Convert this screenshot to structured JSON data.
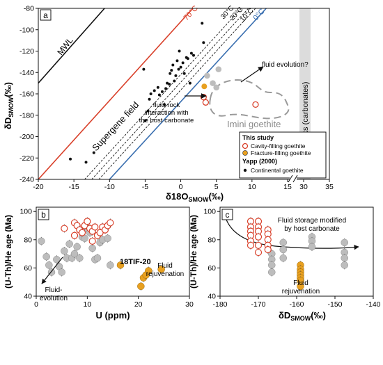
{
  "colors": {
    "red": "#d9402a",
    "blue": "#3a6fb0",
    "orange": "#e8a020",
    "gray": "#bdbdbd",
    "black": "#111111",
    "dashed_region": "#9a9a9a",
    "host_band": "#dcdcdc"
  },
  "chart_data": [
    {
      "panel": "a",
      "type": "scatter",
      "xlabel": "δ18O",
      "xlabel_sub": "SMOW",
      "xlabel_unit": "(‰)",
      "ylabel": "δD",
      "ylabel_sub": "SMOW",
      "ylabel_unit": "(‰)",
      "xticks_main": [
        "-20",
        "-15",
        "-10",
        "-5",
        "0",
        "5",
        "10",
        "15"
      ],
      "xticks_break": [
        "30",
        "35"
      ],
      "yticks": [
        "-80",
        "-100",
        "-120",
        "-140",
        "-160",
        "-180",
        "-200",
        "-220",
        "-240"
      ],
      "xlim_main": [
        -20,
        15
      ],
      "xlim_break": [
        29,
        35
      ],
      "ylim": [
        -240,
        -80
      ],
      "lines": [
        {
          "name": "MWL",
          "color": "#111111",
          "style": "solid",
          "points": [
            [
              -20,
              -150
            ],
            [
              -10.7,
              -80
            ]
          ]
        },
        {
          "name": "70°C",
          "color": "#d9402a",
          "style": "solid",
          "points": [
            [
              -20,
              -240
            ],
            [
              1.7,
              -80
            ]
          ]
        },
        {
          "name": "30°C",
          "color": "#111111",
          "style": "dashed",
          "points": [
            [
              -13.5,
              -240
            ],
            [
              8.5,
              -80
            ]
          ]
        },
        {
          "name": "20°C",
          "color": "#111111",
          "style": "dashed",
          "points": [
            [
              -12.5,
              -240
            ],
            [
              9.5,
              -80
            ]
          ]
        },
        {
          "name": "10°C",
          "color": "#111111",
          "style": "dashed",
          "points": [
            [
              -11.5,
              -240
            ],
            [
              10.5,
              -80
            ]
          ]
        },
        {
          "name": "0°C",
          "color": "#3a6fb0",
          "style": "solid",
          "points": [
            [
              -10,
              -240
            ],
            [
              12,
              -80
            ]
          ]
        }
      ],
      "annotations": {
        "mwl": "MWL",
        "t70": "70°C",
        "t30": "30°C",
        "t20": "20°C",
        "t10": "10°C",
        "t0": "0°C",
        "supergene": "Supergene field",
        "fluid_evolution": "fluid evolution?",
        "fluid_rock_1": "fluid-rock",
        "fluid_rock_2": "interaction with",
        "fluid_rock_3": "the host carbonate",
        "imini": "Imini goethite",
        "host_rocks": "Host-rocks (carbonates)",
        "panel_label": "a"
      },
      "legend": {
        "title": "This study",
        "item1": "Cavity-filling goethite",
        "item2": "Fracture-filling goethite",
        "ref_title": "Yapp (2000)",
        "item3": "Continental goethite",
        "placement": "bottom-right"
      },
      "continental_goethite": [
        [
          -15.5,
          -221
        ],
        [
          -13.3,
          -224
        ],
        [
          -12.2,
          -215
        ],
        [
          -5.2,
          -137
        ],
        [
          -5.0,
          -185
        ],
        [
          -4.6,
          -176
        ],
        [
          -4.4,
          -165
        ],
        [
          -4.2,
          -160
        ],
        [
          -3.7,
          -157
        ],
        [
          -3.2,
          -154
        ],
        [
          -3.0,
          -161
        ],
        [
          -2.6,
          -158
        ],
        [
          -2.3,
          -170
        ],
        [
          -2.1,
          -155
        ],
        [
          -1.9,
          -150
        ],
        [
          -1.6,
          -151
        ],
        [
          -1.5,
          -141
        ],
        [
          -1.3,
          -138
        ],
        [
          -1.1,
          -133
        ],
        [
          -0.9,
          -148
        ],
        [
          -0.7,
          -143
        ],
        [
          -0.5,
          -129
        ],
        [
          -0.3,
          -137
        ],
        [
          0.0,
          -135
        ],
        [
          0.3,
          -131
        ],
        [
          0.5,
          -141
        ],
        [
          0.8,
          -126
        ],
        [
          1.0,
          -127
        ],
        [
          1.5,
          -122
        ],
        [
          1.8,
          -124
        ],
        [
          1.3,
          -150
        ],
        [
          3.0,
          -94
        ],
        [
          3.2,
          -112
        ],
        [
          -0.2,
          -120
        ]
      ],
      "imini_gray": [
        [
          3.7,
          -143
        ],
        [
          5.0,
          -154
        ],
        [
          5.3,
          -137
        ],
        [
          4.5,
          -150
        ]
      ],
      "imini_red": [
        [
          3.2,
          -163
        ],
        [
          3.5,
          -168
        ],
        [
          10.5,
          -170
        ]
      ],
      "imini_orange": [
        [
          3.3,
          -153
        ]
      ]
    },
    {
      "panel": "b",
      "type": "scatter",
      "xlabel": "U (ppm)",
      "ylabel": "(U-Th)/He age (Ma)",
      "xticks": [
        "0",
        "10",
        "20",
        "30"
      ],
      "yticks": [
        "40",
        "60",
        "80",
        "100"
      ],
      "xlim": [
        0,
        30
      ],
      "ylim": [
        40,
        103
      ],
      "annotations": {
        "panel_label": "b",
        "sample": "18TIF-20",
        "fluid_evolution_1": "Fluid-",
        "fluid_evolution_2": "evolution",
        "fluid_rejuv_1": "Fluid",
        "fluid_rejuv_2": "rejuvenation"
      },
      "gray": [
        [
          1.0,
          79
        ],
        [
          2.0,
          68
        ],
        [
          2.5,
          62
        ],
        [
          3.0,
          57
        ],
        [
          4.0,
          66
        ],
        [
          4.5,
          61
        ],
        [
          5.0,
          57
        ],
        [
          5.5,
          72
        ],
        [
          6.0,
          67
        ],
        [
          6.5,
          77
        ],
        [
          7.0,
          67
        ],
        [
          7.5,
          70
        ],
        [
          8.0,
          75
        ],
        [
          8.5,
          67
        ],
        [
          9.0,
          82
        ],
        [
          9.5,
          81
        ],
        [
          10.0,
          88
        ],
        [
          10.5,
          85
        ],
        [
          11.0,
          74
        ],
        [
          11.5,
          66
        ],
        [
          12.0,
          67
        ],
        [
          12.5,
          78
        ],
        [
          13.0,
          80
        ],
        [
          14.0,
          81
        ],
        [
          14.5,
          62
        ]
      ],
      "red": [
        [
          5.5,
          88
        ],
        [
          7.5,
          92
        ],
        [
          8.0,
          90
        ],
        [
          8.5,
          87
        ],
        [
          9.0,
          85
        ],
        [
          9.5,
          90
        ],
        [
          10.0,
          93
        ],
        [
          10.5,
          88
        ],
        [
          11.0,
          86
        ],
        [
          11.5,
          89
        ],
        [
          12.0,
          83
        ],
        [
          12.5,
          85
        ],
        [
          13.0,
          89
        ],
        [
          13.5,
          87
        ],
        [
          14.0,
          90
        ],
        [
          14.5,
          92
        ],
        [
          7.5,
          83
        ],
        [
          11.0,
          79
        ]
      ],
      "orange": [
        [
          16.5,
          62
        ],
        [
          20.5,
          47
        ],
        [
          21.0,
          53
        ],
        [
          21.5,
          55
        ],
        [
          22.0,
          58
        ],
        [
          24.5,
          59
        ]
      ]
    },
    {
      "panel": "c",
      "type": "scatter",
      "xlabel": "δD",
      "xlabel_sub": "SMOW",
      "xlabel_unit": "(‰)",
      "ylabel": "(U-Th)/He age (Ma)",
      "xticks": [
        "-180",
        "-170",
        "-160",
        "-150",
        "-140"
      ],
      "yticks": [
        "40",
        "60",
        "80",
        "100"
      ],
      "xlim": [
        -180,
        -140
      ],
      "ylim": [
        40,
        103
      ],
      "annotations": {
        "panel_label": "c",
        "storage_1": "Fluid storage modified",
        "storage_2": "by host carbonate",
        "fluid_rejuv_1": "Fluid",
        "fluid_rejuv_2": "rejuvenation"
      },
      "red": [
        [
          -172,
          93
        ],
        [
          -172,
          89
        ],
        [
          -172,
          86
        ],
        [
          -172,
          83
        ],
        [
          -172,
          79
        ],
        [
          -172,
          76
        ],
        [
          -170,
          93
        ],
        [
          -170,
          89
        ],
        [
          -170,
          86
        ],
        [
          -170,
          82
        ],
        [
          -170,
          76
        ],
        [
          -170,
          71
        ],
        [
          -167.5,
          87
        ],
        [
          -167.5,
          84
        ],
        [
          -167.5,
          80
        ],
        [
          -167.5,
          76
        ],
        [
          -167.5,
          73
        ]
      ],
      "gray": [
        [
          -166.5,
          70
        ],
        [
          -166.5,
          66
        ],
        [
          -166.5,
          62
        ],
        [
          -166.5,
          57
        ],
        [
          -163.5,
          78
        ],
        [
          -163.5,
          73
        ],
        [
          -163.5,
          67
        ],
        [
          -156,
          82
        ],
        [
          -156,
          79
        ],
        [
          -156,
          75
        ],
        [
          -147.5,
          78
        ],
        [
          -147.5,
          71
        ],
        [
          -147.5,
          67
        ],
        [
          -147.5,
          62
        ]
      ],
      "orange": [
        [
          -159,
          62
        ],
        [
          -159,
          59
        ],
        [
          -159,
          57
        ],
        [
          -159,
          55
        ],
        [
          -159,
          53
        ],
        [
          -159,
          51
        ],
        [
          -159,
          47
        ]
      ]
    }
  ]
}
